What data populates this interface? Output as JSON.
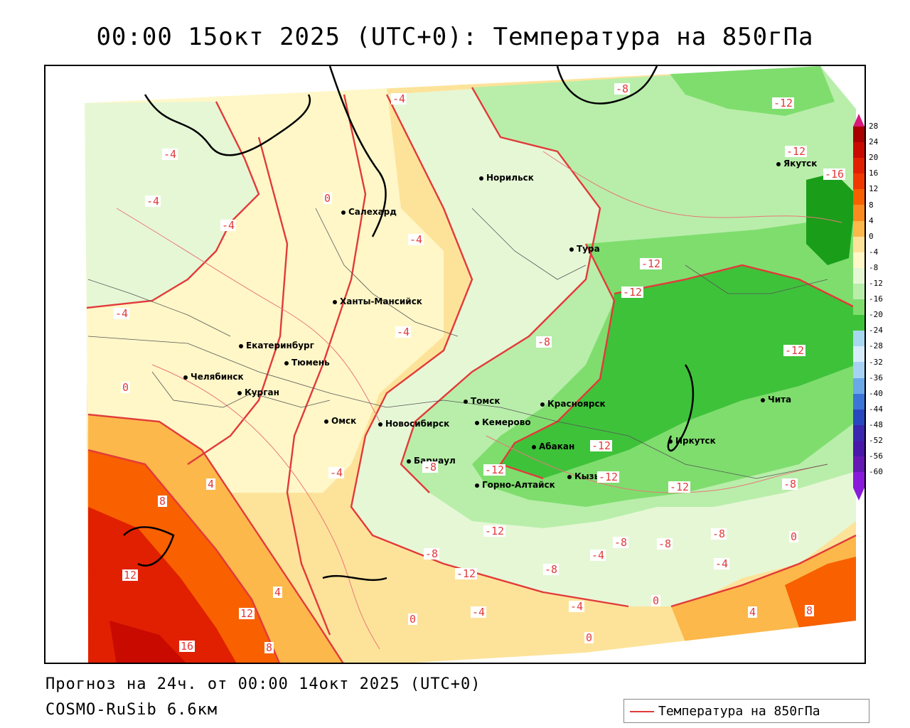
{
  "title": "00:00 15окт 2025 (UTC+0): Температура на 850гПа",
  "footer": {
    "forecast": "Прогноз на 24ч. от 00:00 14окт 2025 (UTC+0)",
    "model": "COSMO-RuSib 6.6км"
  },
  "legend": {
    "label": "Температура на 850гПа",
    "line_color": "#e23a3a"
  },
  "colorbar": {
    "ticks": [
      "28",
      "24",
      "20",
      "16",
      "12",
      "8",
      "4",
      "0",
      "-4",
      "-8",
      "-12",
      "-16",
      "-20",
      "-24",
      "-28",
      "-32",
      "-36",
      "-40",
      "-44",
      "-48",
      "-52",
      "-56",
      "-60"
    ],
    "colors": [
      "#a80000",
      "#c80a00",
      "#e02000",
      "#f03800",
      "#f86000",
      "#fb8a20",
      "#fcb84a",
      "#fde39a",
      "#fff7c8",
      "#e6f7d6",
      "#b8eeaa",
      "#7fdd6e",
      "#3ec23a",
      "#a8d8f0",
      "#d6ecfa",
      "#a8d2f4",
      "#6aa8e8",
      "#3d74d8",
      "#2848c0",
      "#3a28b0",
      "#4a18a8",
      "#6618b4",
      "#8a1adb"
    ]
  },
  "cities": [
    {
      "name": "Норильск"
    },
    {
      "name": "Салехард"
    },
    {
      "name": "Тура"
    },
    {
      "name": "Якутск"
    },
    {
      "name": "Ханты-Мансийск"
    },
    {
      "name": "Екатеринбург"
    },
    {
      "name": "Тюмень"
    },
    {
      "name": "Челябинск"
    },
    {
      "name": "Курган"
    },
    {
      "name": "Омск"
    },
    {
      "name": "Томск"
    },
    {
      "name": "Новосибирск"
    },
    {
      "name": "Кемерово"
    },
    {
      "name": "Красноярск"
    },
    {
      "name": "Барнаул"
    },
    {
      "name": "Абакан"
    },
    {
      "name": "Иркутск"
    },
    {
      "name": "Чита"
    },
    {
      "name": "Кызыл"
    },
    {
      "name": "Горно-Алтайск"
    }
  ],
  "contour_labels": [
    "-4",
    "-8",
    "-12",
    "-4",
    "-12",
    "-8",
    "-16",
    "-4",
    "0",
    "-4",
    "-4",
    "-4",
    "-12",
    "-12",
    "-4",
    "-8",
    "-12",
    "-4",
    "0",
    "-8",
    "-12",
    "-12",
    "-4",
    "4",
    "-12",
    "8",
    "-12",
    "-8",
    "-8",
    "-8",
    "0",
    "-4",
    "-8",
    "-8",
    "-8",
    "-4",
    "-12",
    "-4",
    "-4",
    "0",
    "0",
    "8",
    "4",
    "4",
    "12",
    "4",
    "-12",
    "-4",
    "-8",
    "12",
    "0",
    "8",
    "16"
  ]
}
